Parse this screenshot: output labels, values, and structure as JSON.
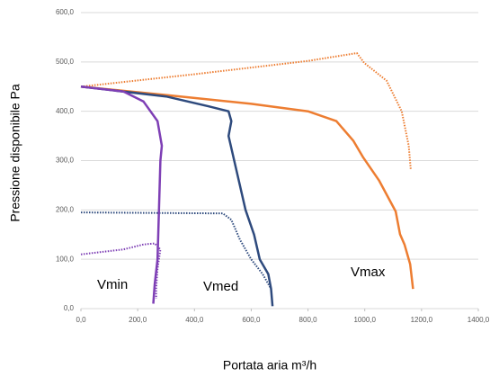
{
  "chart_data": {
    "type": "line",
    "xlabel": "Portata aria m³/h",
    "ylabel": "Pressione disponibile Pa",
    "annotations": [
      "Vmin",
      "Vmed",
      "Vmax"
    ],
    "xlim": [
      0,
      1400
    ],
    "xticks": [
      {
        "value": 0,
        "label": "0,0"
      },
      {
        "value": 200,
        "label": "200,0"
      },
      {
        "value": 400,
        "label": "400,0"
      },
      {
        "value": 600,
        "label": "600,0"
      },
      {
        "value": 800,
        "label": "800,0"
      },
      {
        "value": 1000,
        "label": "1000,0"
      },
      {
        "value": 1200,
        "label": "1200,0"
      },
      {
        "value": 1400,
        "label": "1400,0"
      }
    ],
    "ylim": [
      0,
      600
    ],
    "yticks": [
      {
        "value": 0,
        "label": "0,0"
      },
      {
        "value": 100,
        "label": "100,0"
      },
      {
        "value": 200,
        "label": "200,0"
      },
      {
        "value": 300,
        "label": "300,0"
      },
      {
        "value": 400,
        "label": "400,0"
      },
      {
        "value": 500,
        "label": "500,0"
      },
      {
        "value": 600,
        "label": "600,0"
      }
    ],
    "grid": true,
    "series": [
      {
        "color": "#ed7d31",
        "dash": false,
        "x": [
          0,
          300,
          600,
          800,
          900,
          960,
          995,
          1050,
          1109,
          1124,
          1140,
          1160,
          1170
        ],
        "values": [
          450,
          433,
          415,
          400,
          380,
          340,
          306,
          260,
          197,
          151,
          130,
          90,
          40
        ]
      },
      {
        "color": "#ed7d31",
        "dash": true,
        "x": [
          0,
          400,
          800,
          972,
          998,
          1077,
          1130,
          1155,
          1162
        ],
        "values": [
          450,
          475,
          502,
          518,
          498,
          462,
          400,
          330,
          281
        ]
      },
      {
        "color": "#2e4a7d",
        "dash": false,
        "x": [
          0,
          300,
          450,
          520,
          530,
          520,
          540,
          560,
          580,
          610,
          630,
          660,
          670,
          675
        ],
        "values": [
          450,
          430,
          410,
          400,
          380,
          350,
          300,
          250,
          200,
          150,
          100,
          70,
          40,
          5
        ]
      },
      {
        "color": "#2e4a7d",
        "dash": true,
        "x": [
          0,
          500,
          530,
          560,
          600,
          640,
          670
        ],
        "values": [
          195,
          193,
          180,
          140,
          100,
          70,
          40
        ]
      },
      {
        "color": "#7e3fb5",
        "dash": false,
        "x": [
          0,
          150,
          220,
          270,
          285,
          280,
          275,
          270,
          260,
          255
        ],
        "values": [
          450,
          440,
          420,
          380,
          330,
          300,
          200,
          100,
          50,
          10
        ]
      },
      {
        "color": "#7e3fb5",
        "dash": true,
        "x": [
          0,
          150,
          220,
          260,
          280,
          270,
          265,
          265
        ],
        "values": [
          110,
          120,
          130,
          132,
          120,
          80,
          40,
          20
        ]
      }
    ]
  }
}
